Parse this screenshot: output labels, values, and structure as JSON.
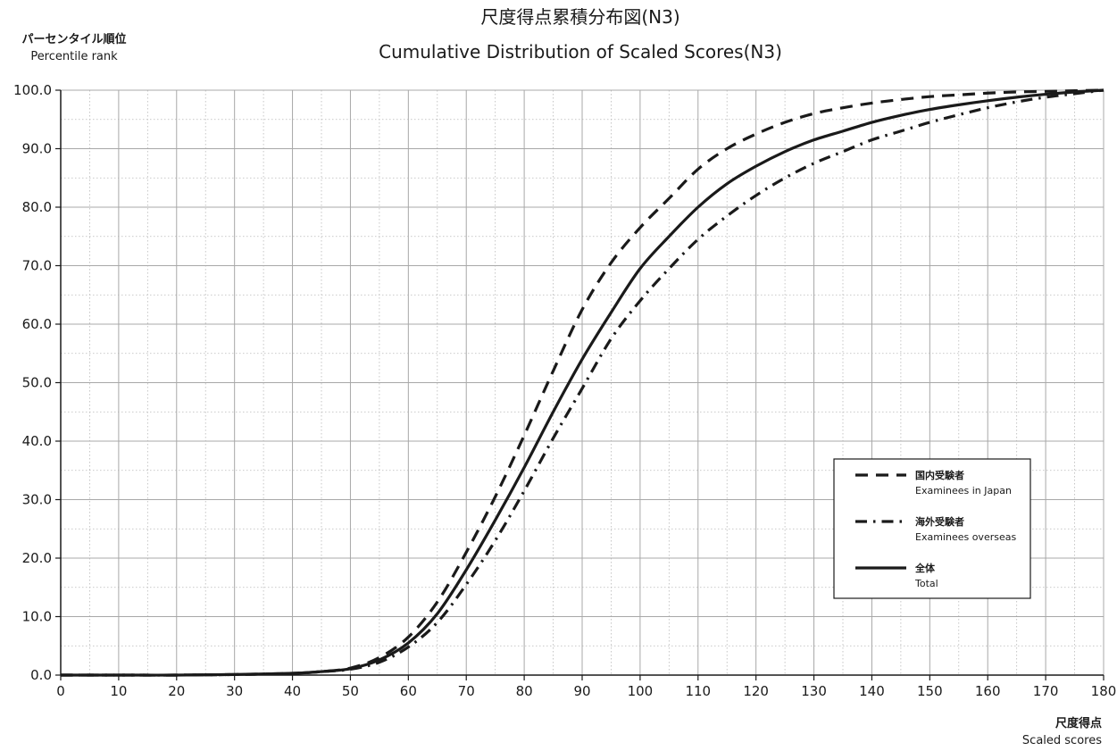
{
  "chart_data": {
    "type": "line",
    "title": "尺度得点累積分布図(N3)",
    "subtitle": "Cumulative Distribution of Scaled Scores(N3)",
    "ylabel_jp": "パーセンタイル順位",
    "ylabel_en": "Percentile rank",
    "xlabel_jp": "尺度得点",
    "xlabel_en": "Scaled scores",
    "xlim": [
      0,
      180
    ],
    "ylim": [
      0,
      100
    ],
    "x_ticks": [
      0,
      10,
      20,
      30,
      40,
      50,
      60,
      70,
      80,
      90,
      100,
      110,
      120,
      130,
      140,
      150,
      160,
      170,
      180
    ],
    "y_ticks": [
      "0.0",
      "10.0",
      "20.0",
      "30.0",
      "40.0",
      "50.0",
      "60.0",
      "70.0",
      "80.0",
      "90.0",
      "100.0"
    ],
    "grid": true,
    "legend_position": "lower-right",
    "x": [
      0,
      10,
      20,
      30,
      40,
      45,
      50,
      55,
      60,
      65,
      70,
      75,
      80,
      85,
      90,
      95,
      100,
      105,
      110,
      115,
      120,
      125,
      130,
      135,
      140,
      145,
      150,
      155,
      160,
      165,
      170,
      175,
      180
    ],
    "series": [
      {
        "name": "国内受験者",
        "name_en": "Examinees in Japan",
        "style": "dashed",
        "values": [
          0,
          0,
          0,
          0.1,
          0.3,
          0.6,
          1.2,
          3.0,
          6.5,
          12.5,
          21.0,
          30.5,
          41.0,
          52.0,
          62.5,
          70.5,
          76.5,
          81.5,
          86.5,
          90.0,
          92.5,
          94.5,
          96.0,
          97.0,
          97.8,
          98.4,
          98.9,
          99.2,
          99.5,
          99.7,
          99.8,
          99.9,
          100
        ]
      },
      {
        "name": "海外受験者",
        "name_en": "Examinees overseas",
        "style": "dash-dot",
        "values": [
          0,
          0,
          0,
          0.1,
          0.3,
          0.6,
          1.0,
          2.2,
          4.8,
          9.0,
          15.5,
          23.0,
          31.5,
          40.5,
          49.0,
          57.5,
          64.0,
          69.5,
          74.5,
          78.5,
          82.0,
          85.0,
          87.5,
          89.5,
          91.5,
          93.0,
          94.5,
          95.8,
          97.0,
          98.0,
          98.8,
          99.4,
          100
        ]
      },
      {
        "name": "全体",
        "name_en": "Total",
        "style": "solid",
        "values": [
          0,
          0,
          0,
          0.1,
          0.3,
          0.6,
          1.1,
          2.6,
          5.5,
          10.5,
          18.0,
          26.5,
          35.5,
          45.0,
          54.0,
          62.0,
          69.5,
          75.0,
          80.0,
          84.0,
          87.0,
          89.5,
          91.5,
          93.0,
          94.5,
          95.7,
          96.7,
          97.5,
          98.2,
          98.8,
          99.3,
          99.7,
          100
        ]
      }
    ]
  }
}
